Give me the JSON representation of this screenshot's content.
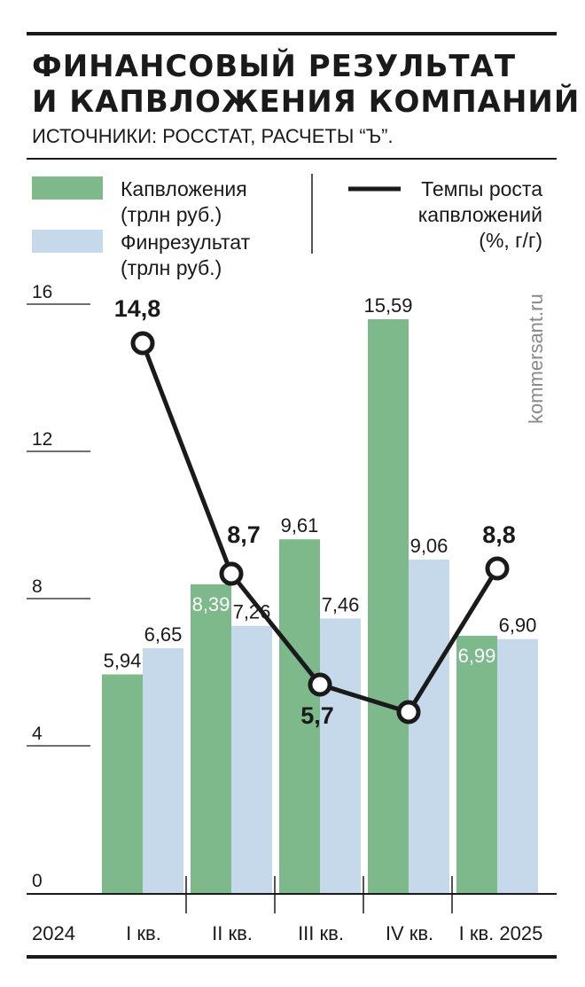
{
  "header": {
    "title_line1": "ФИНАНСОВЫЙ РЕЗУЛЬТАТ",
    "title_line2": "И КАПВЛОЖЕНИЯ КОМПАНИЙ",
    "subtitle": "ИСТОЧНИКИ: РОССТАТ, РАСЧЕТЫ “Ъ”."
  },
  "legend": {
    "invest_line1": "Капвложения",
    "invest_line2": "(трлн руб.)",
    "profit_line1": "Финрезультат",
    "profit_line2": "(трлн руб.)",
    "growth_line1": "Темпы роста",
    "growth_line2": "капвложений",
    "growth_line3": "(%, г/г)"
  },
  "watermark": "kommersant.ru",
  "year_label": "2024",
  "colors": {
    "invest": "#7db98b",
    "profit": "#c5d9ea",
    "line": "#1a1a1a"
  },
  "chart_data": {
    "type": "bar",
    "categories": [
      "I кв.",
      "II кв.",
      "III кв.",
      "IV кв.",
      "I кв. 2025"
    ],
    "series": [
      {
        "name": "Капвложения (трлн руб.)",
        "type": "bar",
        "values": [
          5.94,
          8.39,
          9.61,
          15.59,
          6.99
        ],
        "labels": [
          "5,94",
          "8,39",
          "9,61",
          "15,59",
          "6,99"
        ]
      },
      {
        "name": "Финрезультат (трлн руб.)",
        "type": "bar",
        "values": [
          6.65,
          7.26,
          7.46,
          9.06,
          6.9
        ],
        "labels": [
          "6,65",
          "7,26",
          "7,46",
          "9,06",
          "6,90"
        ]
      },
      {
        "name": "Темпы роста капвложений (%, г/г)",
        "type": "line",
        "values": [
          14.8,
          8.7,
          5.7,
          null,
          8.8
        ],
        "labels": [
          "14,8",
          "8,7",
          "5,7",
          "",
          "8,8"
        ]
      }
    ],
    "yticks": [
      0,
      4,
      8,
      12,
      16
    ],
    "ylim": [
      0,
      16
    ],
    "grid": false,
    "legend_position": "top"
  }
}
